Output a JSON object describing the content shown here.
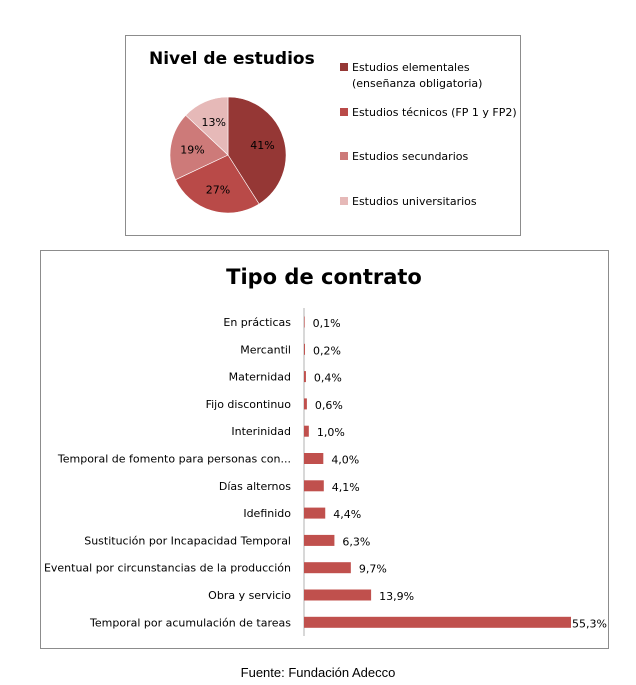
{
  "chart_data": [
    {
      "type": "pie",
      "title": "Nivel de estudios",
      "categories": [
        "Estudios elementales (enseñanza obligatoria)",
        "Estudios técnicos (FP 1 y FP2)",
        "Estudios secundarios",
        "Estudios universitarios"
      ],
      "legend_lines": [
        [
          "Estudios elementales",
          "(enseñanza obligatoria)"
        ],
        [
          "Estudios técnicos (FP 1 y FP2)"
        ],
        [
          "Estudios secundarios"
        ],
        [
          "Estudios universitarios"
        ]
      ],
      "values": [
        41,
        27,
        19,
        13
      ],
      "data_labels": [
        "41%",
        "27%",
        "19%",
        "13%"
      ],
      "colors": [
        "#953735",
        "#b94a48",
        "#cd7a79",
        "#e6b9b8"
      ],
      "legend_position": "right"
    },
    {
      "type": "bar",
      "orientation": "horizontal",
      "title": "Tipo de contrato",
      "categories": [
        "En prácticas",
        "Mercantil",
        "Maternidad",
        "Fijo discontinuo",
        "Interinidad",
        "Temporal de fomento para personas con...",
        "Días alternos",
        "Idefinido",
        "Sustitución por Incapacidad Temporal",
        "Eventual por circunstancias de la producción",
        "Obra y servicio",
        "Temporal por acumulación de tareas"
      ],
      "values": [
        0.1,
        0.2,
        0.4,
        0.6,
        1.0,
        4.0,
        4.1,
        4.4,
        6.3,
        9.7,
        13.9,
        55.3
      ],
      "data_labels": [
        "0,1%",
        "0,2%",
        "0,4%",
        "0,6%",
        "1,0%",
        "4,0%",
        "4,1%",
        "4,4%",
        "6,3%",
        "9,7%",
        "13,9%",
        "55,3%"
      ],
      "color": "#c0504d",
      "xlim": [
        0,
        55.3
      ],
      "grid": false
    }
  ],
  "source": "Fuente: Fundación Adecco"
}
